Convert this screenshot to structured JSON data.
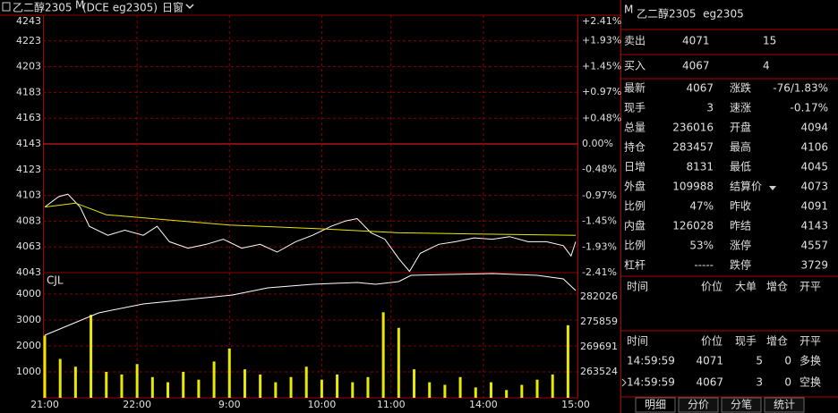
{
  "toolbar": {
    "symbol": "乙二醇2305",
    "flag": "M",
    "exchange": "(DCE eg2305)",
    "window": "日窗"
  },
  "chart_data": [
    {
      "type": "line",
      "xlim": [
        0,
        345
      ],
      "ylim": [
        4043,
        4243
      ],
      "yticks": [
        4243,
        4223,
        4203,
        4183,
        4163,
        4143,
        4123,
        4103,
        4083,
        4063,
        4043
      ],
      "y2lim": [
        -2.41,
        2.41
      ],
      "y2ticks": [
        {
          "value": 2.41,
          "label": "+2.41%"
        },
        {
          "value": 1.93,
          "label": "+1.93%"
        },
        {
          "value": 1.45,
          "label": "+1.45%"
        },
        {
          "value": 0.97,
          "label": "+0.97%"
        },
        {
          "value": 0.48,
          "label": "+0.48%"
        },
        {
          "value": 0,
          "label": "0.00%"
        },
        {
          "value": -0.48,
          "label": "-0.48%"
        },
        {
          "value": -0.97,
          "label": "-0.97%"
        },
        {
          "value": -1.45,
          "label": "-1.45%"
        },
        {
          "value": -1.93,
          "label": "-1.93%"
        },
        {
          "value": -2.41,
          "label": "-2.41%"
        }
      ],
      "grid": true,
      "series": [
        {
          "color": "#ffffff",
          "x": [
            0,
            9,
            15,
            23,
            29,
            41,
            52,
            64,
            73,
            81,
            93,
            105,
            116,
            128,
            140,
            151,
            163,
            174,
            186,
            195,
            203,
            212,
            221,
            230,
            237,
            244,
            256,
            267,
            279,
            291,
            302,
            314,
            326,
            337,
            342,
            345
          ],
          "values": [
            4094,
            4102,
            4104,
            4094,
            4079,
            4072,
            4076,
            4072,
            4079,
            4067,
            4062,
            4065,
            4069,
            4062,
            4065,
            4059,
            4067,
            4072,
            4079,
            4083,
            4085,
            4074,
            4069,
            4054,
            4044,
            4058,
            4065,
            4067,
            4070,
            4069,
            4071,
            4067,
            4067,
            4064,
            4056,
            4067
          ]
        },
        {
          "color": "#e8e800",
          "x": [
            0,
            20,
            40,
            80,
            120,
            180,
            230,
            280,
            345
          ],
          "values": [
            4094,
            4097,
            4088,
            4084,
            4080,
            4077,
            4074,
            4073,
            4072
          ]
        }
      ]
    },
    {
      "type": "bar",
      "label": "CJL",
      "xlim": [
        0,
        345
      ],
      "xticks": [
        {
          "value": 0,
          "label": "21:00"
        },
        {
          "value": 60,
          "label": "22:00"
        },
        {
          "value": 120,
          "label": "9:00"
        },
        {
          "value": 180,
          "label": "10:00"
        },
        {
          "value": 225,
          "label": "11:00"
        },
        {
          "value": 285,
          "label": "14:00"
        },
        {
          "value": 345,
          "label": "15:00"
        }
      ],
      "ylim": [
        0,
        4828
      ],
      "yticks": [
        1000,
        2000,
        3000,
        4000
      ],
      "y2lim": [
        257136,
        287973
      ],
      "y2ticks": [
        263524,
        269691,
        275859,
        282026
      ],
      "series": [
        {
          "color": "#e8e800",
          "x": [
            0,
            10,
            20,
            30,
            40,
            50,
            60,
            70,
            80,
            90,
            100,
            110,
            120,
            130,
            140,
            150,
            160,
            170,
            180,
            190,
            200,
            210,
            220,
            230,
            240,
            250,
            260,
            270,
            280,
            290,
            300,
            310,
            320,
            330,
            340
          ],
          "values": [
            2400,
            1500,
            1200,
            3200,
            1000,
            900,
            1300,
            800,
            600,
            1000,
            700,
            1400,
            1900,
            1100,
            900,
            600,
            800,
            1200,
            700,
            900,
            600,
            800,
            3300,
            2700,
            1100,
            600,
            500,
            800,
            400,
            600,
            300,
            500,
            700,
            900,
            2800
          ]
        },
        {
          "type": "line",
          "axis": "y2",
          "color": "#ffffff",
          "x": [
            0,
            35,
            64,
            122,
            145,
            174,
            203,
            215,
            230,
            238,
            262,
            291,
            320,
            337,
            345
          ],
          "values": [
            272554,
            278062,
            280262,
            282465,
            284227,
            285108,
            285548,
            285108,
            285769,
            287311,
            287531,
            287751,
            287311,
            286430,
            283567
          ]
        }
      ]
    }
  ],
  "quote": {
    "flag": "M",
    "title": "乙二醇2305  eg2305",
    "ask": {
      "label": "卖出",
      "price": 4071,
      "volume": 15
    },
    "bid": {
      "label": "买入",
      "price": 4067,
      "volume": 4
    },
    "stats": [
      [
        {
          "label": "最新",
          "value": 4067,
          "color": "#3ee03e"
        },
        {
          "label": "涨跌",
          "value": "-76/1.83%",
          "color": "#3ee03e"
        }
      ],
      [
        {
          "label": "现手",
          "value": 3,
          "color": "#e8e800"
        },
        {
          "label": "速涨",
          "value": "-0.17%",
          "color": "#3ee03e"
        }
      ],
      [
        {
          "label": "总量",
          "value": 236016,
          "color": "#e8e800"
        },
        {
          "label": "开盘",
          "value": 4094,
          "color": "#3ee03e"
        }
      ],
      [
        {
          "label": "持仓",
          "value": 283457,
          "color": "#e8e800"
        },
        {
          "label": "最高",
          "value": 4106,
          "color": "#3ee03e"
        }
      ],
      [
        {
          "label": "日增",
          "value": 8131,
          "color": "#e8e800"
        },
        {
          "label": "最低",
          "value": 4045,
          "color": "#3ee03e"
        }
      ],
      [
        {
          "label": "外盘",
          "value": 109988,
          "color": "#e8e800"
        },
        {
          "label": "结算价",
          "value": 4073,
          "color": "#3ee03e"
        }
      ],
      [
        {
          "label": "比例",
          "value": "47%",
          "color": "#e8e800"
        },
        {
          "label": "昨收",
          "value": 4091,
          "color": "#e0e0e0"
        }
      ],
      [
        {
          "label": "内盘",
          "value": 126028,
          "color": "#e8e800"
        },
        {
          "label": "昨结",
          "value": 4143,
          "color": "#e0e0e0"
        }
      ],
      [
        {
          "label": "比例",
          "value": "53%",
          "color": "#e8e800"
        },
        {
          "label": "涨停",
          "value": 4557,
          "color": "#ff4040"
        }
      ],
      [
        {
          "label": "杠杆",
          "value": "-----",
          "color": "#e0e0e0"
        },
        {
          "label": "跌停",
          "value": 3729,
          "color": "#e8e800"
        }
      ]
    ],
    "big_header": [
      "时间",
      "价位",
      "大单",
      "增仓",
      "开平"
    ],
    "trade_header": [
      "时间",
      "价位",
      "现手",
      "增仓",
      "开平"
    ],
    "trades": [
      [
        "14:59:59",
        4071,
        5,
        0,
        "多换"
      ],
      [
        "14:59:59",
        4067,
        3,
        0,
        "空换"
      ]
    ],
    "tabs": [
      "明细",
      "分价",
      "分笔",
      "统计"
    ]
  }
}
